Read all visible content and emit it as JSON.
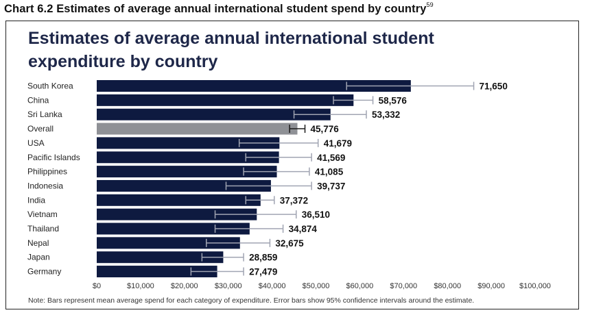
{
  "header": {
    "caption": "Chart 6.2 Estimates of average annual international student spend by country",
    "footnote_ref": "59"
  },
  "chart_data": {
    "type": "bar",
    "orientation": "horizontal",
    "title": "Estimates of average annual international student expenditure by country",
    "categories": [
      "South Korea",
      "China",
      "Sri Lanka",
      "Overall",
      "USA",
      "Pacific Islands",
      "Philippines",
      "Indonesia",
      "India",
      "Vietnam",
      "Thailand",
      "Nepal",
      "Japan",
      "Germany"
    ],
    "values": [
      71650,
      58576,
      53332,
      45776,
      41679,
      41569,
      41085,
      39737,
      37372,
      36510,
      34874,
      32675,
      28859,
      27479
    ],
    "value_labels": [
      "71,650",
      "58,576",
      "53,332",
      "45,776",
      "41,679",
      "41,569",
      "41,085",
      "39,737",
      "37,372",
      "36,510",
      "34,874",
      "32,675",
      "28,859",
      "27,479"
    ],
    "error_low": [
      57000,
      54000,
      45000,
      44000,
      32500,
      34000,
      33500,
      29500,
      34000,
      27000,
      27000,
      25000,
      24000,
      21500
    ],
    "error_high": [
      86000,
      63000,
      61500,
      47500,
      50500,
      49000,
      48500,
      49000,
      40500,
      45500,
      42500,
      39500,
      33500,
      33500
    ],
    "highlight_category": "Overall",
    "xlim": [
      0,
      100000
    ],
    "x_ticks": [
      "$0",
      "$10,000",
      "$20,000",
      "$30,000",
      "$40,000",
      "$50,000",
      "$60,000",
      "$70,000",
      "$80,000",
      "$90,000",
      "$100,000"
    ],
    "xlabel": "",
    "ylabel": "",
    "grid": false,
    "note": "Note: Bars represent mean average spend for each category of expenditure. Error bars show 95% confidence intervals around the estimate."
  },
  "colors": {
    "bar": "#0e1a40",
    "highlight_bar": "#8f9196",
    "error_bar": "#a0a4b2",
    "title": "#1e2749"
  }
}
